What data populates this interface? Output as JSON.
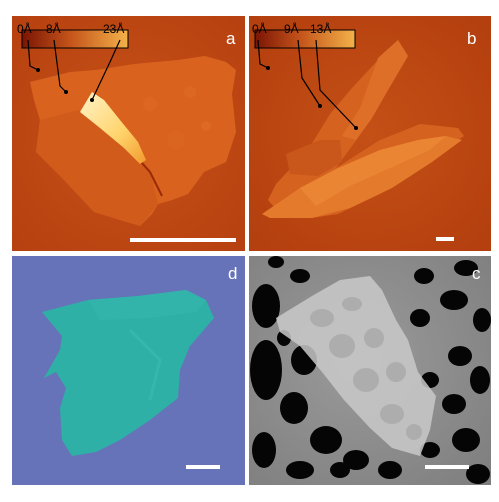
{
  "figure": {
    "panels": [
      {
        "id": "a",
        "letter": "a",
        "type": "AFM height image",
        "colorbar": {
          "ticks": [
            "0Å",
            "8Å",
            "23Å"
          ]
        }
      },
      {
        "id": "b",
        "letter": "b",
        "type": "AFM height image",
        "colorbar": {
          "ticks": [
            "0Å",
            "9Å",
            "13Å"
          ]
        }
      },
      {
        "id": "d",
        "letter": "d",
        "type": "optical micrograph"
      },
      {
        "id": "c",
        "letter": "c",
        "type": "SEM micrograph"
      }
    ],
    "colors": {
      "afm_background": "#c04a12",
      "afm_dark": "#8e1c05",
      "afm_bright": "#ffe08a",
      "optical_background": "#6673b8",
      "optical_flake": "#2fb0a6",
      "sem_background": "#8e8e8e",
      "sem_holes": "#050505",
      "scale_bar": "#ffffff"
    }
  }
}
